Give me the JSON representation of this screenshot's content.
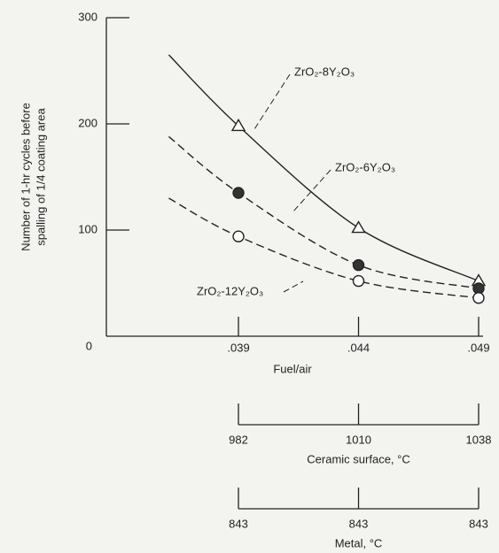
{
  "chart_data": {
    "type": "line",
    "ylabel": [
      "Number of 1-hr cycles before",
      "spalling of 1/4 coating area"
    ],
    "xlabel": "Fuel/air",
    "xlim": [
      0.0335,
      0.049
    ],
    "ylim": [
      0,
      300
    ],
    "xticks": [
      {
        "value": 0.039,
        "label": ".039"
      },
      {
        "value": 0.044,
        "label": ".044"
      },
      {
        "value": 0.049,
        "label": ".049"
      }
    ],
    "yticks": [
      0,
      100,
      200,
      300
    ],
    "marker_x": [
      0.039,
      0.044,
      0.049
    ],
    "series": [
      {
        "name": "ZrO₂-8Y₂O₃",
        "color": "#222222",
        "dash": false,
        "marker": "open-triangle",
        "x": [
          0.0361,
          0.039,
          0.044,
          0.049
        ],
        "values": [
          265,
          198,
          102,
          52
        ],
        "marker_values": [
          198,
          102,
          52
        ]
      },
      {
        "name": "ZrO₂-6Y₂O₃",
        "color": "#222222",
        "dash": true,
        "marker": "filled-circle",
        "x": [
          0.0361,
          0.039,
          0.044,
          0.049
        ],
        "values": [
          188,
          135,
          67,
          45
        ],
        "marker_values": [
          135,
          67,
          45
        ]
      },
      {
        "name": "ZrO₂-12Y₂O₃",
        "color": "#222222",
        "dash": true,
        "marker": "open-circle",
        "x": [
          0.0361,
          0.039,
          0.044,
          0.049
        ],
        "values": [
          130,
          94,
          52,
          36
        ],
        "marker_values": [
          94,
          52,
          36
        ]
      }
    ],
    "secondary_scales": [
      {
        "label": "Ceramic surface, °C",
        "ticks": [
          "982",
          "1010",
          "1038"
        ]
      },
      {
        "label": "Metal, °C",
        "ticks": [
          "843",
          "843",
          "843"
        ]
      }
    ]
  }
}
